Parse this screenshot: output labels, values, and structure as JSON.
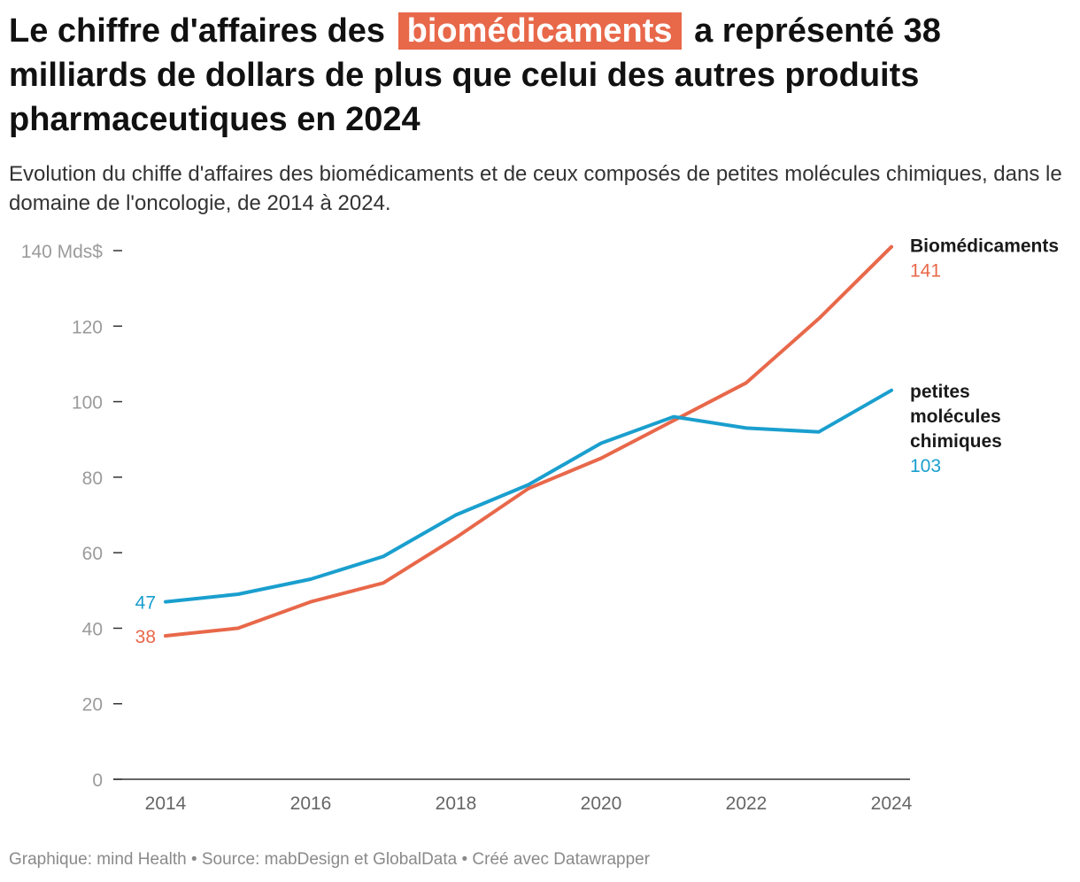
{
  "header": {
    "title_before": "Le chiffre d'affaires des",
    "title_highlight": "biomédicaments",
    "title_after": "a représenté 38 milliards de dollars de plus que celui des autres produits pharmaceutiques en 2024",
    "subtitle": "Evolution du chiffe d'affaires des biomédicaments et de ceux composés de petites molécules chimiques, dans le domaine de l'oncologie, de 2014 à 2024.",
    "highlight_color": "#e8684a"
  },
  "chart_data": {
    "type": "line",
    "title": "",
    "xlabel": "",
    "ylabel": "",
    "x": [
      2014,
      2015,
      2016,
      2017,
      2018,
      2019,
      2020,
      2021,
      2022,
      2023,
      2024
    ],
    "xlim": [
      2014,
      2024
    ],
    "ylim": [
      0,
      140
    ],
    "y_ticks": [
      0,
      20,
      40,
      60,
      80,
      100,
      120,
      140
    ],
    "y_tick_labels": [
      "0",
      "20",
      "40",
      "60",
      "80",
      "100",
      "120",
      "140 Mds$"
    ],
    "x_ticks": [
      2014,
      2016,
      2018,
      2020,
      2022,
      2024
    ],
    "x_tick_labels": [
      "2014",
      "2016",
      "2018",
      "2020",
      "2022",
      "2024"
    ],
    "grid": false,
    "legend": "direct labels at line ends",
    "series": [
      {
        "name": "Biomédicaments",
        "color": "#e8684a",
        "values": [
          38,
          40,
          47,
          52,
          64,
          77,
          85,
          95,
          105,
          122,
          141
        ],
        "start_label": "38",
        "end_label": "141"
      },
      {
        "name": "petites molécules chimiques",
        "name_lines": [
          "petites",
          "molécules",
          "chimiques"
        ],
        "color": "#1a9fce",
        "values": [
          47,
          49,
          53,
          59,
          70,
          78,
          89,
          96,
          93,
          92,
          103
        ],
        "start_label": "47",
        "end_label": "103"
      }
    ]
  },
  "footer": {
    "credit": "Graphique: mind Health • Source: mabDesign et GlobalData • Créé avec Datawrapper"
  }
}
